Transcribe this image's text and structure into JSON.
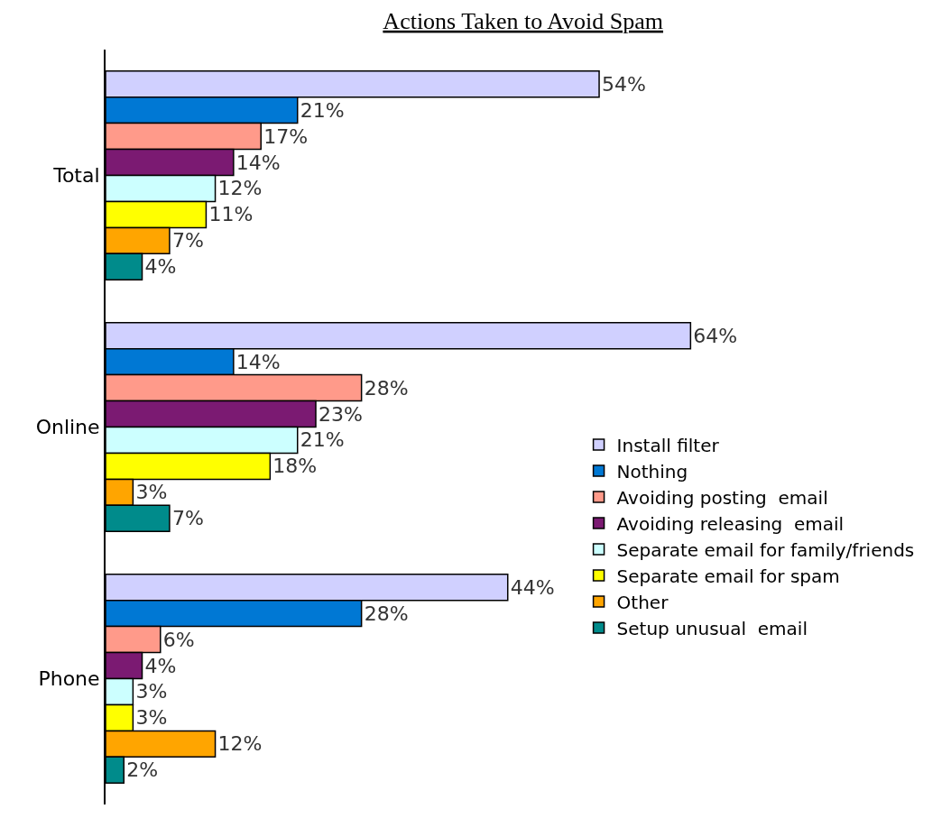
{
  "chart_data": {
    "type": "bar",
    "orientation": "horizontal",
    "title": "Actions Taken to Avoid Spam",
    "categories": [
      "Total",
      "Online",
      "Phone"
    ],
    "xlim": [
      0,
      92
    ],
    "tick_labels": "y",
    "legend": "bottom right",
    "series": [
      {
        "name": "Install filter",
        "color": "#d0d0ff",
        "values": [
          54,
          64,
          44
        ],
        "value_labels": [
          "54%",
          "64%",
          "44%"
        ]
      },
      {
        "name": "Nothing",
        "color": "#0078d4",
        "values": [
          21,
          14,
          28
        ],
        "value_labels": [
          "21%",
          "14%",
          "28%"
        ]
      },
      {
        "name": "Avoiding posting  email",
        "color": "#ff9a8a",
        "values": [
          17,
          28,
          6
        ],
        "value_labels": [
          "17%",
          "28%",
          "6%"
        ]
      },
      {
        "name": "Avoiding releasing  email",
        "color": "#7b1a72",
        "values": [
          14,
          23,
          4
        ],
        "value_labels": [
          "14%",
          "23%",
          "4%"
        ]
      },
      {
        "name": "Separate email for family/friends",
        "color": "#ccffff",
        "values": [
          12,
          21,
          3
        ],
        "value_labels": [
          "12%",
          "21%",
          "3%"
        ]
      },
      {
        "name": "Separate email for spam",
        "color": "#ffff00",
        "values": [
          11,
          18,
          3
        ],
        "value_labels": [
          "11%",
          "18%",
          "3%"
        ]
      },
      {
        "name": "Other",
        "color": "#ffa500",
        "values": [
          7,
          3,
          12
        ],
        "value_labels": [
          "7%",
          "3%",
          "12%"
        ]
      },
      {
        "name": "Setup unusual  email",
        "color": "#008b8b",
        "values": [
          4,
          7,
          2
        ],
        "value_labels": [
          "4%",
          "7%",
          "2%"
        ]
      }
    ]
  }
}
